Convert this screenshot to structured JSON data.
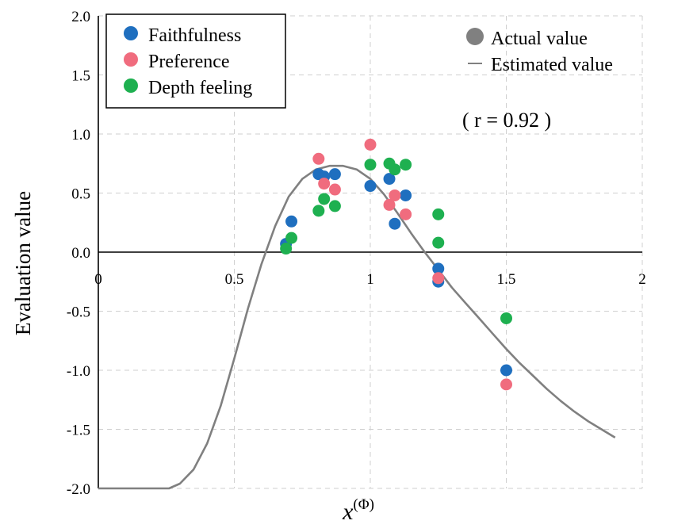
{
  "chart_data": {
    "type": "scatter",
    "xlabel": "x",
    "xlabel_superscript": "(Φ)",
    "ylabel": "Evaluation value",
    "xlim": [
      0,
      2
    ],
    "ylim": [
      -2.0,
      2.0
    ],
    "x_ticks": [
      "0",
      "0.5",
      "1",
      "1.5",
      "2"
    ],
    "y_ticks": [
      "2.0",
      "1.5",
      "1.0",
      "0.5",
      "0.0",
      "-0.5",
      "-1.0",
      "-1.5",
      "-2.0"
    ],
    "x_tick_values": [
      0,
      0.5,
      1,
      1.5,
      2
    ],
    "y_tick_values": [
      2.0,
      1.5,
      1.0,
      0.5,
      0.0,
      -0.5,
      -1.0,
      -1.5,
      -2.0
    ],
    "grid": true,
    "legend_placement": "top-left",
    "annotation": "( r = 0.92 )",
    "style_legend": {
      "actual": "Actual value",
      "estimated": "Estimated value",
      "placement": "top-right"
    },
    "series": [
      {
        "name": "Faithfulness",
        "color": "#1f6fbf",
        "points": [
          [
            0.69,
            0.07
          ],
          [
            0.71,
            0.26
          ],
          [
            0.81,
            0.66
          ],
          [
            0.83,
            0.64
          ],
          [
            0.87,
            0.66
          ],
          [
            1.0,
            0.56
          ],
          [
            1.07,
            0.62
          ],
          [
            1.09,
            0.24
          ],
          [
            1.13,
            0.48
          ],
          [
            1.25,
            -0.14
          ],
          [
            1.25,
            -0.25
          ],
          [
            1.5,
            -1.0
          ]
        ]
      },
      {
        "name": "Preference",
        "color": "#f06c7e",
        "points": [
          [
            0.81,
            0.79
          ],
          [
            0.83,
            0.58
          ],
          [
            0.87,
            0.53
          ],
          [
            1.0,
            0.91
          ],
          [
            1.07,
            0.4
          ],
          [
            1.09,
            0.48
          ],
          [
            1.13,
            0.32
          ],
          [
            1.25,
            -0.22
          ],
          [
            1.5,
            -1.12
          ]
        ]
      },
      {
        "name": "Depth feeling",
        "color": "#1eb050",
        "points": [
          [
            0.69,
            0.03
          ],
          [
            0.71,
            0.12
          ],
          [
            0.81,
            0.35
          ],
          [
            0.83,
            0.45
          ],
          [
            0.87,
            0.39
          ],
          [
            1.0,
            0.74
          ],
          [
            1.07,
            0.75
          ],
          [
            1.09,
            0.7
          ],
          [
            1.13,
            0.74
          ],
          [
            1.25,
            0.32
          ],
          [
            1.25,
            0.08
          ],
          [
            1.5,
            -0.56
          ]
        ]
      }
    ],
    "estimated_curve": {
      "color": "#808080",
      "points": [
        [
          0.0,
          -2.0
        ],
        [
          0.26,
          -2.0
        ],
        [
          0.3,
          -1.96
        ],
        [
          0.35,
          -1.84
        ],
        [
          0.4,
          -1.62
        ],
        [
          0.45,
          -1.3
        ],
        [
          0.5,
          -0.9
        ],
        [
          0.55,
          -0.48
        ],
        [
          0.6,
          -0.1
        ],
        [
          0.65,
          0.22
        ],
        [
          0.7,
          0.47
        ],
        [
          0.75,
          0.62
        ],
        [
          0.8,
          0.7
        ],
        [
          0.85,
          0.73
        ],
        [
          0.9,
          0.73
        ],
        [
          0.95,
          0.7
        ],
        [
          1.0,
          0.62
        ],
        [
          1.05,
          0.49
        ],
        [
          1.1,
          0.33
        ],
        [
          1.15,
          0.16
        ],
        [
          1.2,
          0.0
        ],
        [
          1.25,
          -0.15
        ],
        [
          1.3,
          -0.3
        ],
        [
          1.35,
          -0.43
        ],
        [
          1.4,
          -0.56
        ],
        [
          1.45,
          -0.69
        ],
        [
          1.5,
          -0.82
        ],
        [
          1.55,
          -0.94
        ],
        [
          1.6,
          -1.05
        ],
        [
          1.65,
          -1.16
        ],
        [
          1.7,
          -1.26
        ],
        [
          1.75,
          -1.35
        ],
        [
          1.8,
          -1.43
        ],
        [
          1.85,
          -1.5
        ],
        [
          1.9,
          -1.57
        ]
      ]
    }
  }
}
